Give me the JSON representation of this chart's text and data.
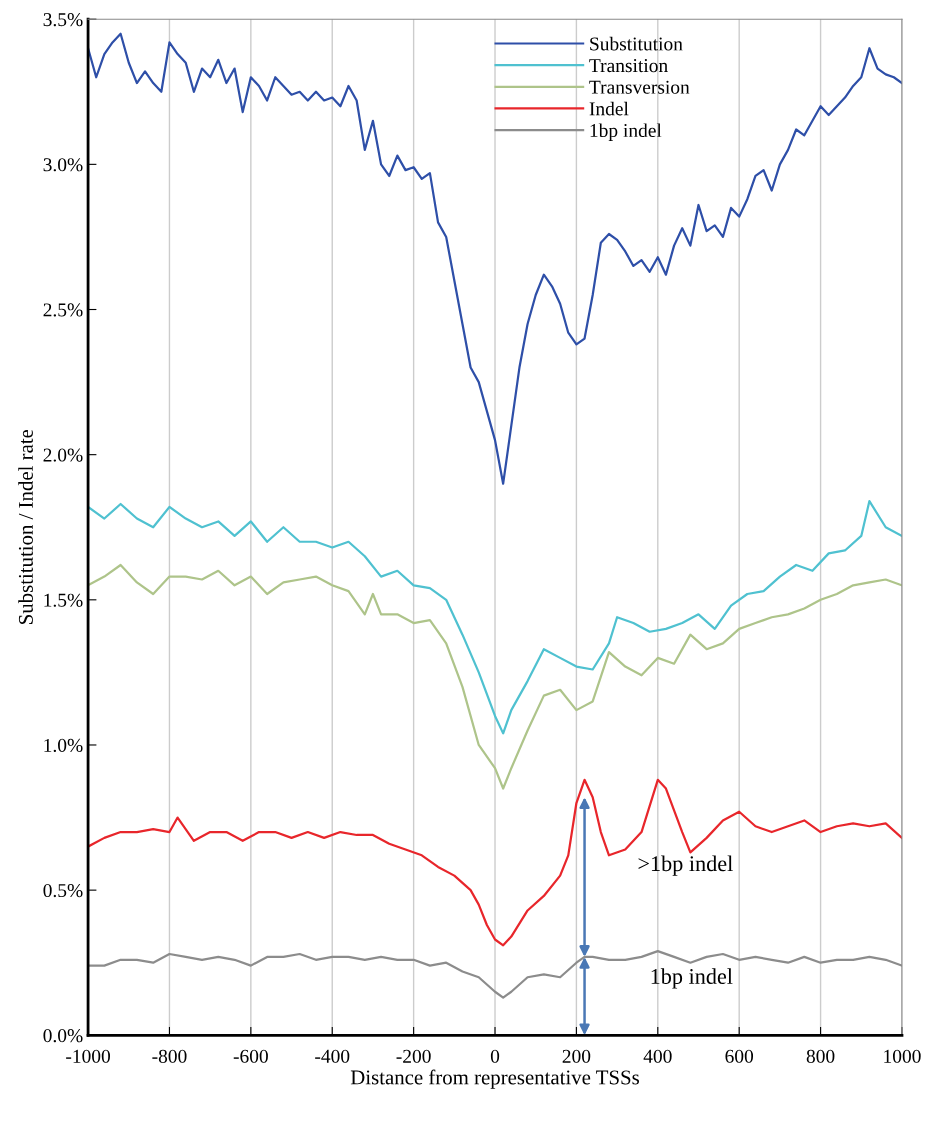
{
  "chart_data": {
    "type": "line",
    "xlabel": "Distance from representative TSSs",
    "ylabel": "Substitution / Indel rate",
    "xlim": [
      -1000,
      1000
    ],
    "xticks": [
      -1000,
      -800,
      -600,
      -400,
      -200,
      0,
      200,
      400,
      600,
      800,
      1000
    ],
    "ylim": [
      0,
      3.5
    ],
    "yticks": [
      {
        "value": 0,
        "label": "0.0%"
      },
      {
        "value": 0.5,
        "label": "0.5%"
      },
      {
        "value": 1.0,
        "label": "1.0%"
      },
      {
        "value": 1.5,
        "label": "1.5%"
      },
      {
        "value": 2.0,
        "label": "2.0%"
      },
      {
        "value": 2.5,
        "label": "2.5%"
      },
      {
        "value": 3.0,
        "label": "3.0%"
      },
      {
        "value": 3.5,
        "label": "3.5%"
      }
    ],
    "grid": "x",
    "legend": "top",
    "marker": "none",
    "line_style": "solid",
    "annotations": [
      ">1bp indel",
      "1bp indel"
    ],
    "series": [
      {
        "name": "Substitution",
        "color": "#2e4fa8",
        "x": [
          -1000,
          -980,
          -960,
          -940,
          -920,
          -900,
          -880,
          -860,
          -840,
          -820,
          -800,
          -780,
          -760,
          -740,
          -720,
          -700,
          -680,
          -660,
          -640,
          -620,
          -600,
          -580,
          -560,
          -540,
          -520,
          -500,
          -480,
          -460,
          -440,
          -420,
          -400,
          -380,
          -360,
          -340,
          -320,
          -300,
          -280,
          -260,
          -240,
          -220,
          -200,
          -180,
          -160,
          -140,
          -120,
          -100,
          -80,
          -60,
          -40,
          -20,
          0,
          20,
          40,
          60,
          80,
          100,
          120,
          140,
          160,
          180,
          200,
          220,
          240,
          260,
          280,
          300,
          320,
          340,
          360,
          380,
          400,
          420,
          440,
          460,
          480,
          500,
          520,
          540,
          560,
          580,
          600,
          620,
          640,
          660,
          680,
          700,
          720,
          740,
          760,
          780,
          800,
          820,
          840,
          860,
          880,
          900,
          920,
          940,
          960,
          980,
          1000
        ],
        "values": [
          3.4,
          3.3,
          3.38,
          3.42,
          3.45,
          3.35,
          3.28,
          3.32,
          3.28,
          3.25,
          3.42,
          3.38,
          3.35,
          3.25,
          3.33,
          3.3,
          3.36,
          3.28,
          3.33,
          3.18,
          3.3,
          3.27,
          3.22,
          3.3,
          3.27,
          3.24,
          3.25,
          3.22,
          3.25,
          3.22,
          3.23,
          3.2,
          3.27,
          3.22,
          3.05,
          3.15,
          3.0,
          2.96,
          3.03,
          2.98,
          2.99,
          2.95,
          2.97,
          2.8,
          2.75,
          2.6,
          2.45,
          2.3,
          2.25,
          2.15,
          2.05,
          1.9,
          2.1,
          2.3,
          2.45,
          2.55,
          2.62,
          2.58,
          2.52,
          2.42,
          2.38,
          2.4,
          2.55,
          2.73,
          2.76,
          2.74,
          2.7,
          2.65,
          2.67,
          2.63,
          2.68,
          2.62,
          2.72,
          2.78,
          2.72,
          2.86,
          2.77,
          2.79,
          2.75,
          2.85,
          2.82,
          2.88,
          2.96,
          2.98,
          2.91,
          3.0,
          3.05,
          3.12,
          3.1,
          3.15,
          3.2,
          3.17,
          3.2,
          3.23,
          3.27,
          3.3,
          3.4,
          3.33,
          3.31,
          3.3,
          3.28
        ]
      },
      {
        "name": "Transition",
        "color": "#4fc1d0",
        "x": [
          -1000,
          -960,
          -920,
          -880,
          -840,
          -800,
          -760,
          -720,
          -680,
          -640,
          -600,
          -560,
          -520,
          -480,
          -440,
          -400,
          -360,
          -320,
          -280,
          -240,
          -200,
          -160,
          -120,
          -80,
          -40,
          0,
          20,
          40,
          80,
          120,
          160,
          200,
          240,
          280,
          300,
          340,
          380,
          420,
          460,
          500,
          540,
          580,
          620,
          660,
          700,
          740,
          780,
          820,
          860,
          900,
          920,
          960,
          1000
        ],
        "values": [
          1.82,
          1.78,
          1.83,
          1.78,
          1.75,
          1.82,
          1.78,
          1.75,
          1.77,
          1.72,
          1.77,
          1.7,
          1.75,
          1.7,
          1.7,
          1.68,
          1.7,
          1.65,
          1.58,
          1.6,
          1.55,
          1.54,
          1.5,
          1.38,
          1.25,
          1.1,
          1.04,
          1.12,
          1.22,
          1.33,
          1.3,
          1.27,
          1.26,
          1.35,
          1.44,
          1.42,
          1.39,
          1.4,
          1.42,
          1.45,
          1.4,
          1.48,
          1.52,
          1.53,
          1.58,
          1.62,
          1.6,
          1.66,
          1.67,
          1.72,
          1.84,
          1.75,
          1.72
        ]
      },
      {
        "name": "Transversion",
        "color": "#aec48a",
        "x": [
          -1000,
          -960,
          -920,
          -880,
          -840,
          -800,
          -760,
          -720,
          -680,
          -640,
          -600,
          -560,
          -520,
          -480,
          -440,
          -400,
          -360,
          -320,
          -300,
          -280,
          -240,
          -200,
          -160,
          -120,
          -80,
          -40,
          0,
          20,
          40,
          80,
          120,
          160,
          200,
          240,
          280,
          320,
          360,
          400,
          440,
          480,
          520,
          560,
          600,
          640,
          680,
          720,
          760,
          800,
          840,
          880,
          920,
          960,
          1000
        ],
        "values": [
          1.55,
          1.58,
          1.62,
          1.56,
          1.52,
          1.58,
          1.58,
          1.57,
          1.6,
          1.55,
          1.58,
          1.52,
          1.56,
          1.57,
          1.58,
          1.55,
          1.53,
          1.45,
          1.52,
          1.45,
          1.45,
          1.42,
          1.43,
          1.35,
          1.2,
          1.0,
          0.92,
          0.85,
          0.92,
          1.05,
          1.17,
          1.19,
          1.12,
          1.15,
          1.32,
          1.27,
          1.24,
          1.3,
          1.28,
          1.38,
          1.33,
          1.35,
          1.4,
          1.42,
          1.44,
          1.45,
          1.47,
          1.5,
          1.52,
          1.55,
          1.56,
          1.57,
          1.55
        ]
      },
      {
        "name": "Indel",
        "color": "#e8262b",
        "x": [
          -1000,
          -960,
          -920,
          -880,
          -840,
          -800,
          -780,
          -740,
          -700,
          -660,
          -620,
          -580,
          -540,
          -500,
          -460,
          -420,
          -380,
          -340,
          -300,
          -260,
          -220,
          -180,
          -140,
          -100,
          -60,
          -40,
          -20,
          0,
          20,
          40,
          80,
          120,
          160,
          180,
          200,
          220,
          240,
          260,
          280,
          320,
          360,
          400,
          420,
          460,
          480,
          520,
          560,
          600,
          640,
          680,
          720,
          760,
          800,
          840,
          880,
          920,
          960,
          1000
        ],
        "values": [
          0.65,
          0.68,
          0.7,
          0.7,
          0.71,
          0.7,
          0.75,
          0.67,
          0.7,
          0.7,
          0.67,
          0.7,
          0.7,
          0.68,
          0.7,
          0.68,
          0.7,
          0.69,
          0.69,
          0.66,
          0.64,
          0.62,
          0.58,
          0.55,
          0.5,
          0.45,
          0.38,
          0.33,
          0.31,
          0.34,
          0.43,
          0.48,
          0.55,
          0.62,
          0.8,
          0.88,
          0.82,
          0.7,
          0.62,
          0.64,
          0.7,
          0.88,
          0.85,
          0.7,
          0.63,
          0.68,
          0.74,
          0.77,
          0.72,
          0.7,
          0.72,
          0.74,
          0.7,
          0.72,
          0.73,
          0.72,
          0.73,
          0.68
        ]
      },
      {
        "name": "1bp indel",
        "color": "#8c8c8c",
        "x": [
          -1000,
          -960,
          -920,
          -880,
          -840,
          -800,
          -760,
          -720,
          -680,
          -640,
          -600,
          -560,
          -520,
          -480,
          -440,
          -400,
          -360,
          -320,
          -280,
          -240,
          -200,
          -160,
          -120,
          -80,
          -40,
          0,
          20,
          40,
          80,
          120,
          160,
          200,
          220,
          240,
          280,
          320,
          360,
          400,
          440,
          480,
          520,
          560,
          600,
          640,
          680,
          720,
          760,
          800,
          840,
          880,
          920,
          960,
          1000
        ],
        "values": [
          0.24,
          0.24,
          0.26,
          0.26,
          0.25,
          0.28,
          0.27,
          0.26,
          0.27,
          0.26,
          0.24,
          0.27,
          0.27,
          0.28,
          0.26,
          0.27,
          0.27,
          0.26,
          0.27,
          0.26,
          0.26,
          0.24,
          0.25,
          0.22,
          0.2,
          0.15,
          0.13,
          0.15,
          0.2,
          0.21,
          0.2,
          0.25,
          0.27,
          0.27,
          0.26,
          0.26,
          0.27,
          0.29,
          0.27,
          0.25,
          0.27,
          0.28,
          0.26,
          0.27,
          0.26,
          0.25,
          0.27,
          0.25,
          0.26,
          0.26,
          0.27,
          0.26,
          0.24
        ]
      }
    ]
  }
}
